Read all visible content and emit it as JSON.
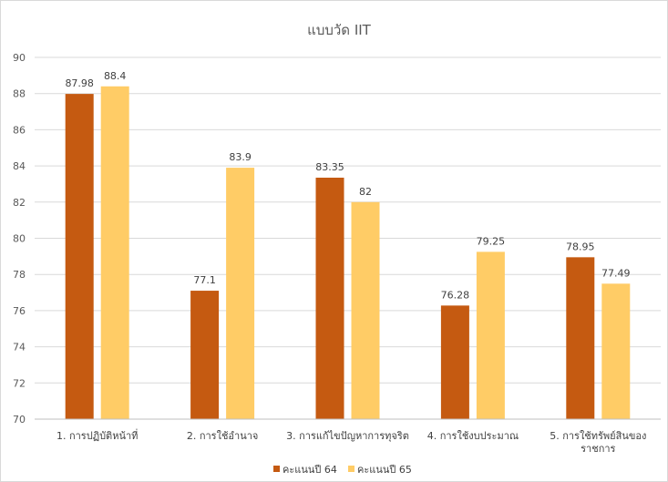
{
  "chart_data": {
    "type": "bar",
    "title": "แบบวัด IIT",
    "categories": [
      [
        "1. การปฏิบัติหน้าที่"
      ],
      [
        "2. การใช้อำนาจ"
      ],
      [
        "3. การแก้ไขปัญหาการทุจริต"
      ],
      [
        "4. การใช้งบประมาณ"
      ],
      [
        "5. การใช้ทรัพย์สินของ",
        "ราชการ"
      ]
    ],
    "series": [
      {
        "name": "คะแนนปี 64",
        "color": "#c55a11",
        "values": [
          87.98,
          77.1,
          83.35,
          76.28,
          78.95
        ]
      },
      {
        "name": "คะแนนปี 65",
        "color": "#ffcc66",
        "values": [
          88.4,
          83.9,
          82,
          79.25,
          77.49
        ]
      }
    ],
    "ylim": [
      70,
      90
    ],
    "yticks": [
      70,
      72,
      74,
      76,
      78,
      80,
      82,
      84,
      86,
      88,
      90
    ],
    "grid": true,
    "legend": "bottom-center",
    "data_labels": true
  }
}
